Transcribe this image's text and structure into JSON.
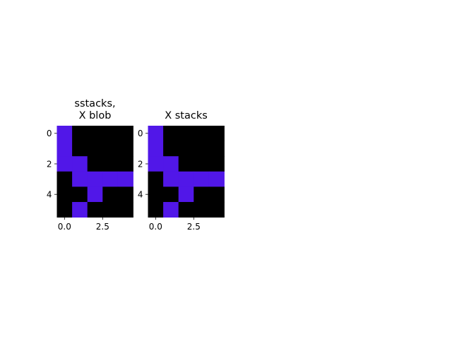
{
  "figure": {
    "background": "#ffffff"
  },
  "chart_data": [
    {
      "type": "heatmap",
      "title_lines": [
        "sstacks,",
        "X blob"
      ],
      "rows": 6,
      "cols": 5,
      "grid": [
        [
          1,
          0,
          0,
          0,
          0
        ],
        [
          1,
          0,
          0,
          0,
          0
        ],
        [
          1,
          1,
          0,
          0,
          0
        ],
        [
          0,
          1,
          1,
          1,
          1
        ],
        [
          0,
          0,
          1,
          0,
          0
        ],
        [
          0,
          1,
          0,
          0,
          0
        ]
      ],
      "colors": {
        "0": "#000000",
        "1": "#5117e8"
      },
      "xticks": [
        0.0,
        2.5
      ],
      "xtick_labels": [
        "0.0",
        "2.5"
      ],
      "yticks": [
        0,
        2,
        4
      ],
      "ytick_labels": [
        "0",
        "2",
        "4"
      ],
      "xlim": [
        -0.5,
        4.5
      ],
      "ylim": [
        5.5,
        -0.5
      ],
      "grid_lines": false
    },
    {
      "type": "heatmap",
      "title_lines": [
        "X stacks"
      ],
      "rows": 6,
      "cols": 5,
      "grid": [
        [
          1,
          0,
          0,
          0,
          0
        ],
        [
          1,
          0,
          0,
          0,
          0
        ],
        [
          1,
          1,
          0,
          0,
          0
        ],
        [
          0,
          1,
          1,
          1,
          1
        ],
        [
          0,
          0,
          1,
          0,
          0
        ],
        [
          0,
          1,
          0,
          0,
          0
        ]
      ],
      "colors": {
        "0": "#000000",
        "1": "#5117e8"
      },
      "xticks": [
        0.0,
        2.5
      ],
      "xtick_labels": [
        "0.0",
        "2.5"
      ],
      "yticks": [
        0,
        2,
        4
      ],
      "ytick_labels": [
        "0",
        "2",
        "4"
      ],
      "xlim": [
        -0.5,
        4.5
      ],
      "ylim": [
        5.5,
        -0.5
      ],
      "grid_lines": false
    }
  ]
}
